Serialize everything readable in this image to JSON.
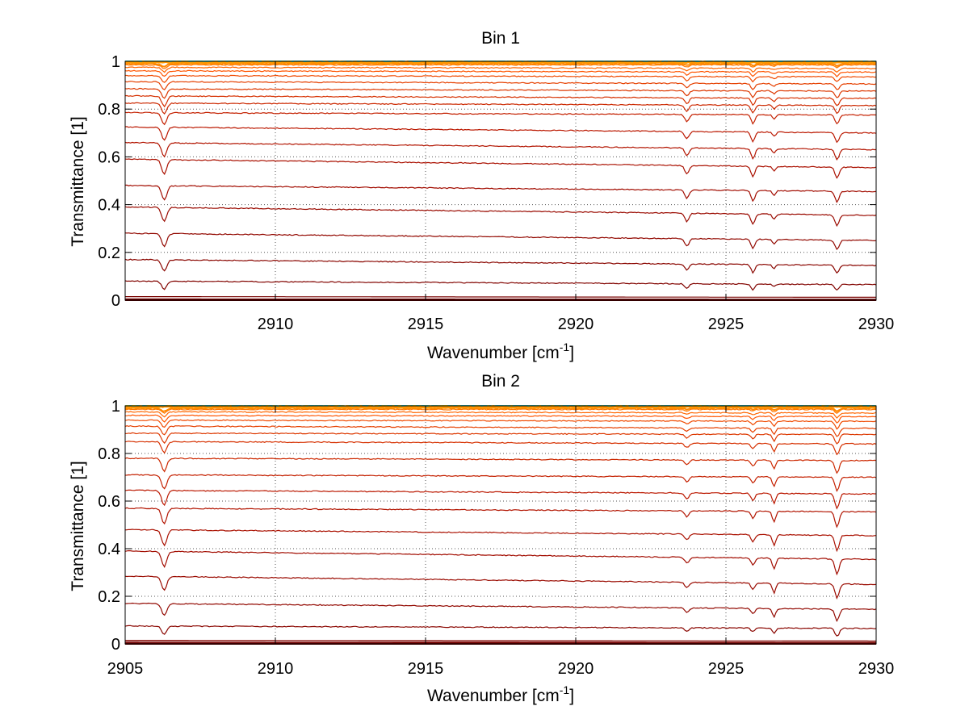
{
  "chart_data": [
    {
      "type": "line",
      "title": "Bin 1",
      "xlabel": "Wavenumber [cm",
      "xlabel_sup": "-1",
      "xlabel_tail": "]",
      "ylabel": "Transmittance [1]",
      "xlim": [
        2905,
        2930
      ],
      "ylim": [
        0,
        1
      ],
      "grid": true,
      "x_ticks": [
        2910,
        2915,
        2920,
        2925,
        2930
      ],
      "y_ticks": [
        0,
        0.2,
        0.4,
        0.6,
        0.8,
        1
      ],
      "y_tick_labels": [
        "0",
        "0.2",
        "0.4",
        "0.6",
        "0.8",
        "1"
      ],
      "x_tick_labels": [
        "2910",
        "2915",
        "2920",
        "2925",
        "2930"
      ],
      "series_count": 26,
      "baselines_start": [
        0.995,
        0.99,
        0.985,
        0.975,
        0.96,
        0.94,
        0.915,
        0.885,
        0.855,
        0.825,
        0.785,
        0.725,
        0.66,
        0.59,
        0.48,
        0.39,
        0.28,
        0.17,
        0.08,
        0.015,
        0.005,
        1.0,
        1.0,
        1.0,
        0.0,
        0.0
      ],
      "baselines_end": [
        0.995,
        0.99,
        0.985,
        0.97,
        0.955,
        0.935,
        0.905,
        0.875,
        0.845,
        0.815,
        0.775,
        0.7,
        0.63,
        0.555,
        0.455,
        0.355,
        0.25,
        0.145,
        0.065,
        0.012,
        0.004,
        1.0,
        1.0,
        1.0,
        0.0,
        0.0
      ],
      "absorption_lines": [
        {
          "x": 2906.3,
          "depth": 0.06,
          "width": 0.12
        },
        {
          "x": 2923.7,
          "depth": 0.035,
          "width": 0.1
        },
        {
          "x": 2925.9,
          "depth": 0.045,
          "width": 0.09
        },
        {
          "x": 2926.6,
          "depth": 0.02,
          "width": 0.08
        },
        {
          "x": 2928.7,
          "depth": 0.045,
          "width": 0.1
        }
      ],
      "colors": [
        "#ff9900",
        "#ff8800",
        "#ff7700",
        "#ff6600",
        "#ff5500",
        "#f04a00",
        "#e64000",
        "#dd3800",
        "#d63000",
        "#cc2800",
        "#c42000",
        "#bb1800",
        "#b21400",
        "#aa1000",
        "#a20c00",
        "#9a0a00",
        "#920800",
        "#8a0600",
        "#820400",
        "#7a0200",
        "#700000",
        "#33cccc",
        "#ffcc00",
        "#ffaa00",
        "#660000",
        "#550000"
      ]
    },
    {
      "type": "line",
      "title": "Bin 2",
      "xlabel": "Wavenumber [cm",
      "xlabel_sup": "-1",
      "xlabel_tail": "]",
      "ylabel": "Transmittance [1]",
      "xlim": [
        2905,
        2930
      ],
      "ylim": [
        0,
        1
      ],
      "grid": true,
      "x_ticks": [
        2905,
        2910,
        2915,
        2920,
        2925,
        2930
      ],
      "y_ticks": [
        0,
        0.2,
        0.4,
        0.6,
        0.8,
        1
      ],
      "y_tick_labels": [
        "0",
        "0.2",
        "0.4",
        "0.6",
        "0.8",
        "1"
      ],
      "x_tick_labels": [
        "2905",
        "2910",
        "2915",
        "2920",
        "2925",
        "2930"
      ],
      "series_count": 26,
      "baselines_start": [
        0.995,
        0.99,
        0.985,
        0.975,
        0.96,
        0.94,
        0.915,
        0.885,
        0.85,
        0.78,
        0.71,
        0.645,
        0.57,
        0.48,
        0.39,
        0.285,
        0.17,
        0.075,
        0.015,
        0.008,
        0.004,
        1.0,
        1.0,
        1.0,
        0.0,
        0.0
      ],
      "baselines_end": [
        0.995,
        0.99,
        0.985,
        0.97,
        0.955,
        0.935,
        0.905,
        0.88,
        0.84,
        0.77,
        0.7,
        0.63,
        0.555,
        0.455,
        0.355,
        0.25,
        0.145,
        0.065,
        0.012,
        0.006,
        0.003,
        1.0,
        1.0,
        1.0,
        0.0,
        0.0
      ],
      "absorption_lines": [
        {
          "x": 2906.3,
          "depth": 0.065,
          "width": 0.12
        },
        {
          "x": 2923.7,
          "depth": 0.025,
          "width": 0.1
        },
        {
          "x": 2925.9,
          "depth": 0.03,
          "width": 0.09
        },
        {
          "x": 2926.6,
          "depth": 0.045,
          "width": 0.08
        },
        {
          "x": 2928.7,
          "depth": 0.065,
          "width": 0.1
        }
      ],
      "colors": [
        "#ff9900",
        "#ff8800",
        "#ff7700",
        "#ff6600",
        "#ff5500",
        "#f04a00",
        "#e64000",
        "#dd3800",
        "#d63000",
        "#cc2800",
        "#c42000",
        "#bb1800",
        "#b21400",
        "#aa1000",
        "#a20c00",
        "#9a0a00",
        "#920800",
        "#8a0600",
        "#820400",
        "#7a0200",
        "#700000",
        "#33cccc",
        "#ffcc00",
        "#ffaa00",
        "#660000",
        "#550000"
      ]
    }
  ]
}
